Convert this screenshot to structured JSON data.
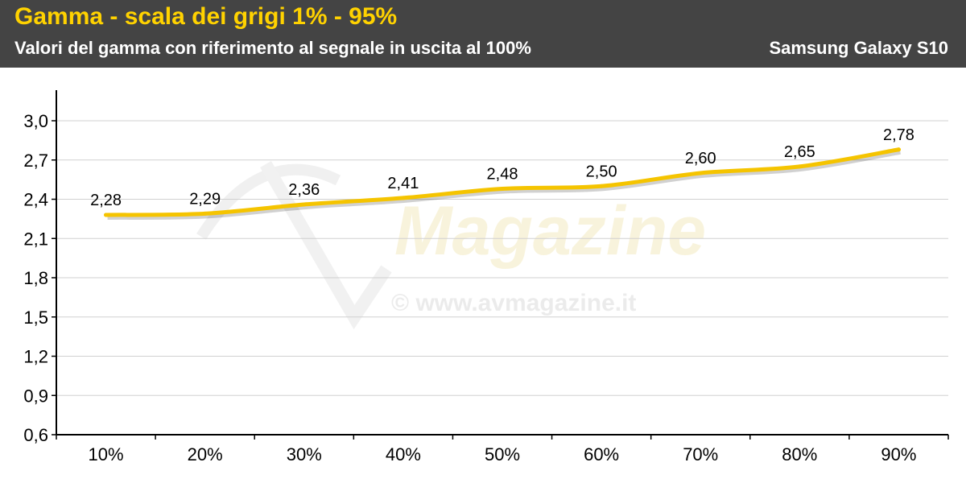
{
  "header": {
    "title": "Gamma - scala dei grigi 1% - 95%",
    "subtitle": "Valori del gamma con riferimento al segnale in uscita al 100%",
    "device": "Samsung Galaxy S10"
  },
  "watermark": {
    "logo_text": "Magazine",
    "url_text": "© www.avmagazine.it"
  },
  "colors": {
    "title": "#ffd200",
    "line": "#f5c400",
    "header_bg": "#444444",
    "grid": "#d0d0d0"
  },
  "chart_data": {
    "type": "line",
    "title": "Gamma - scala dei grigi 1% - 95%",
    "subtitle": "Valori del gamma con riferimento al segnale in uscita al 100%",
    "categories": [
      "10%",
      "20%",
      "30%",
      "40%",
      "50%",
      "60%",
      "70%",
      "80%",
      "90%"
    ],
    "series": [
      {
        "name": "",
        "values": [
          2.28,
          2.29,
          2.36,
          2.41,
          2.48,
          2.5,
          2.6,
          2.65,
          2.78
        ],
        "labels": [
          "2,28",
          "2,29",
          "2,36",
          "2,41",
          "2,48",
          "2,50",
          "2,60",
          "2,65",
          "2,78"
        ]
      }
    ],
    "ylim": [
      0.6,
      3.0
    ],
    "yticks": [
      0.6,
      0.9,
      1.2,
      1.5,
      1.8,
      2.1,
      2.4,
      2.7,
      3.0
    ],
    "ytick_labels": [
      "0,6",
      "0,9",
      "1,2",
      "1,5",
      "1,8",
      "2,1",
      "2,4",
      "2,7",
      "3,0"
    ],
    "grid": true,
    "legend": "none"
  }
}
